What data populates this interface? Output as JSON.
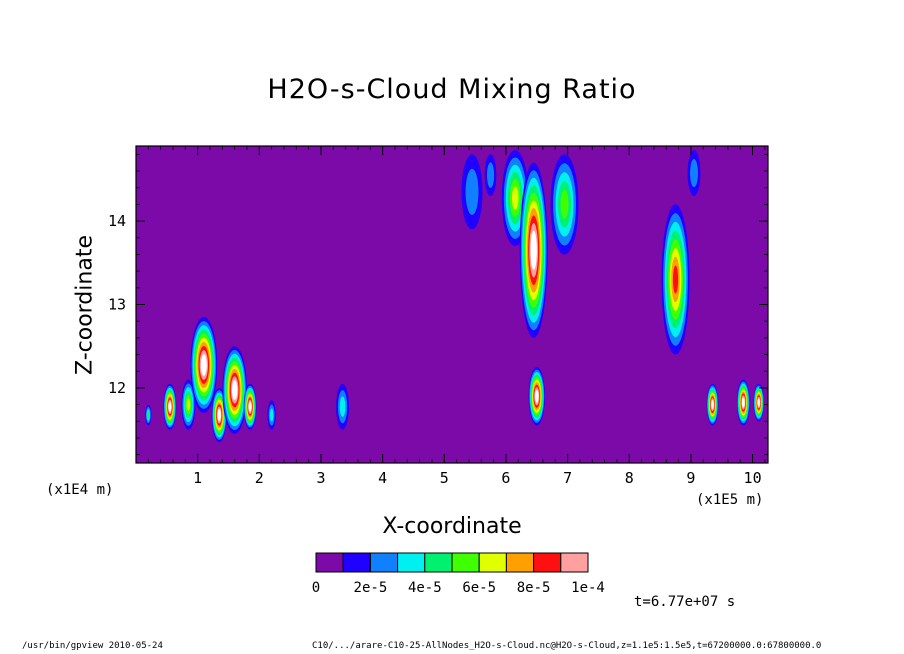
{
  "title": "H2O-s-Cloud Mixing Ratio",
  "xlabel": "X-coordinate",
  "ylabel": "Z-coordinate",
  "x_unit": "(x1E5 m)",
  "y_unit": "(x1E4 m)",
  "timestamp": "t=6.77e+07 s",
  "footer_left": "/usr/bin/gpview  2010-05-24",
  "footer_right": "C10/.../arare-C10-25-AllNodes_H2O-s-Cloud.nc@H2O-s-Cloud,z=1.1e5:1.5e5,t=67200000.0:67800000.0",
  "background_color": "#7b0aa8",
  "chart_data": {
    "type": "heatmap",
    "title": "H2O-s-Cloud Mixing Ratio",
    "xlabel": "X-coordinate",
    "ylabel": "Z-coordinate",
    "xlim": [
      0,
      10.25
    ],
    "ylim": [
      11.1,
      14.9
    ],
    "x_ticks": [
      1,
      2,
      3,
      4,
      5,
      6,
      7,
      8,
      9,
      10
    ],
    "y_ticks": [
      12,
      13,
      14
    ],
    "colorbar": {
      "levels": [
        0,
        1e-05,
        2e-05,
        3e-05,
        4e-05,
        5e-05,
        6e-05,
        7e-05,
        8e-05,
        9e-05,
        0.0001
      ],
      "tick_labels": [
        "0",
        "2e-5",
        "4e-5",
        "6e-5",
        "8e-5",
        "1e-4"
      ],
      "colors": [
        "#7b0aa8",
        "#2000ff",
        "#1080ff",
        "#00f0f0",
        "#00f070",
        "#40ff00",
        "#e0ff00",
        "#ffa000",
        "#ff1010",
        "#ffa0a0"
      ],
      "over_color": "#ffffff"
    },
    "features": [
      {
        "x": 0.2,
        "z_min": 11.55,
        "z_max": 11.8,
        "peak": 4e-05
      },
      {
        "x": 0.55,
        "z_min": 11.5,
        "z_max": 12.05,
        "peak": 0.00012
      },
      {
        "x": 0.85,
        "z_min": 11.5,
        "z_max": 12.1,
        "peak": 6e-05
      },
      {
        "x": 1.1,
        "z_min": 11.7,
        "z_max": 12.85,
        "peak": 0.00012
      },
      {
        "x": 1.35,
        "z_min": 11.35,
        "z_max": 12.0,
        "peak": 0.00012
      },
      {
        "x": 1.6,
        "z_min": 11.45,
        "z_max": 12.5,
        "peak": 0.00012
      },
      {
        "x": 1.85,
        "z_min": 11.5,
        "z_max": 12.05,
        "peak": 0.00012
      },
      {
        "x": 2.2,
        "z_min": 11.5,
        "z_max": 11.85,
        "peak": 3e-05
      },
      {
        "x": 3.35,
        "z_min": 11.5,
        "z_max": 12.05,
        "peak": 3e-05
      },
      {
        "x": 5.45,
        "z_min": 13.9,
        "z_max": 14.8,
        "peak": 2e-05
      },
      {
        "x": 5.75,
        "z_min": 14.3,
        "z_max": 14.8,
        "peak": 2e-05
      },
      {
        "x": 6.15,
        "z_min": 13.7,
        "z_max": 14.85,
        "peak": 6e-05
      },
      {
        "x": 6.45,
        "z_min": 12.6,
        "z_max": 14.7,
        "peak": 0.00012
      },
      {
        "x": 6.5,
        "z_min": 11.55,
        "z_max": 12.25,
        "peak": 0.00012
      },
      {
        "x": 6.95,
        "z_min": 13.6,
        "z_max": 14.8,
        "peak": 5e-05
      },
      {
        "x": 8.75,
        "z_min": 12.4,
        "z_max": 14.2,
        "peak": 8e-05
      },
      {
        "x": 9.05,
        "z_min": 14.3,
        "z_max": 14.85,
        "peak": 2e-05
      },
      {
        "x": 9.35,
        "z_min": 11.55,
        "z_max": 12.05,
        "peak": 0.00012
      },
      {
        "x": 9.85,
        "z_min": 11.55,
        "z_max": 12.1,
        "peak": 0.00012
      },
      {
        "x": 10.1,
        "z_min": 11.6,
        "z_max": 12.05,
        "peak": 0.00012
      }
    ]
  }
}
